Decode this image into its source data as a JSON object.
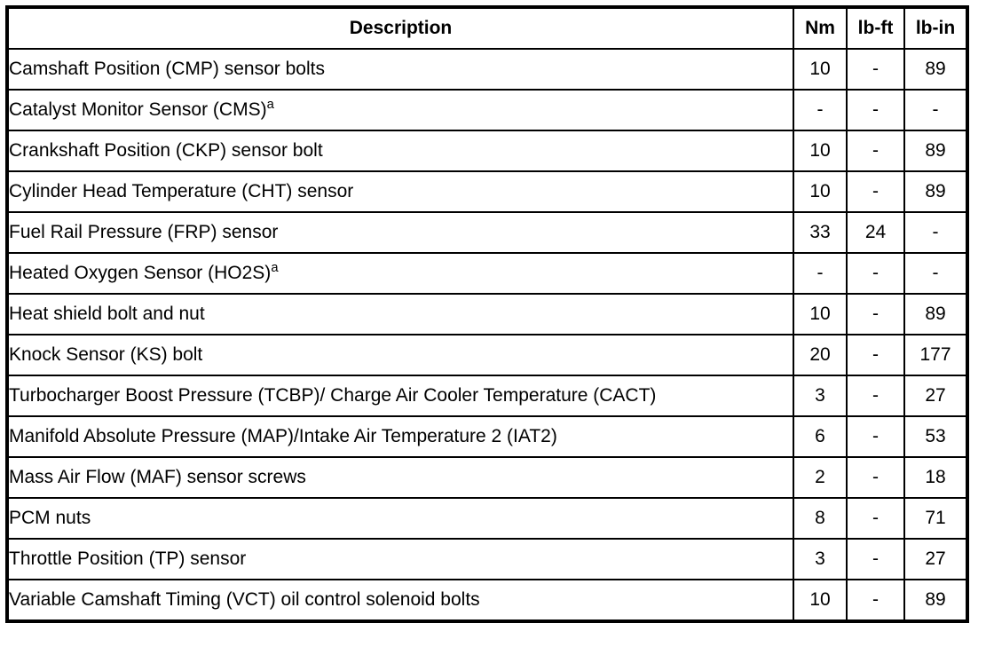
{
  "table": {
    "columns": [
      "Description",
      "Nm",
      "lb-ft",
      "lb-in"
    ],
    "rows": [
      {
        "description": "Camshaft Position (CMP) sensor bolts",
        "sup": "",
        "nm": "10",
        "lbft": "-",
        "lbin": "89"
      },
      {
        "description": "Catalyst Monitor Sensor (CMS)",
        "sup": "a",
        "nm": "-",
        "lbft": "-",
        "lbin": "-"
      },
      {
        "description": "Crankshaft Position (CKP) sensor bolt",
        "sup": "",
        "nm": "10",
        "lbft": "-",
        "lbin": "89"
      },
      {
        "description": "Cylinder Head Temperature (CHT) sensor",
        "sup": "",
        "nm": "10",
        "lbft": "-",
        "lbin": "89"
      },
      {
        "description": "Fuel Rail Pressure (FRP) sensor",
        "sup": "",
        "nm": "33",
        "lbft": "24",
        "lbin": "-"
      },
      {
        "description": "Heated Oxygen Sensor (HO2S)",
        "sup": "a",
        "nm": "-",
        "lbft": "-",
        "lbin": "-"
      },
      {
        "description": "Heat shield bolt and nut",
        "sup": "",
        "nm": "10",
        "lbft": "-",
        "lbin": "89"
      },
      {
        "description": "Knock Sensor (KS) bolt",
        "sup": "",
        "nm": "20",
        "lbft": "-",
        "lbin": "177"
      },
      {
        "description": "Turbocharger Boost Pressure (TCBP)/ Charge Air Cooler Temperature (CACT)",
        "sup": "",
        "nm": "3",
        "lbft": "-",
        "lbin": "27"
      },
      {
        "description": "Manifold Absolute Pressure (MAP)/Intake Air Temperature 2 (IAT2)",
        "sup": "",
        "nm": "6",
        "lbft": "-",
        "lbin": "53"
      },
      {
        "description": "Mass Air Flow (MAF) sensor screws",
        "sup": "",
        "nm": "2",
        "lbft": "-",
        "lbin": "18"
      },
      {
        "description": "PCM nuts",
        "sup": "",
        "nm": "8",
        "lbft": "-",
        "lbin": "71"
      },
      {
        "description": "Throttle Position (TP) sensor",
        "sup": "",
        "nm": "3",
        "lbft": "-",
        "lbin": "27"
      },
      {
        "description": "Variable Camshaft Timing (VCT) oil control solenoid bolts",
        "sup": "",
        "nm": "10",
        "lbft": "-",
        "lbin": "89"
      }
    ]
  }
}
